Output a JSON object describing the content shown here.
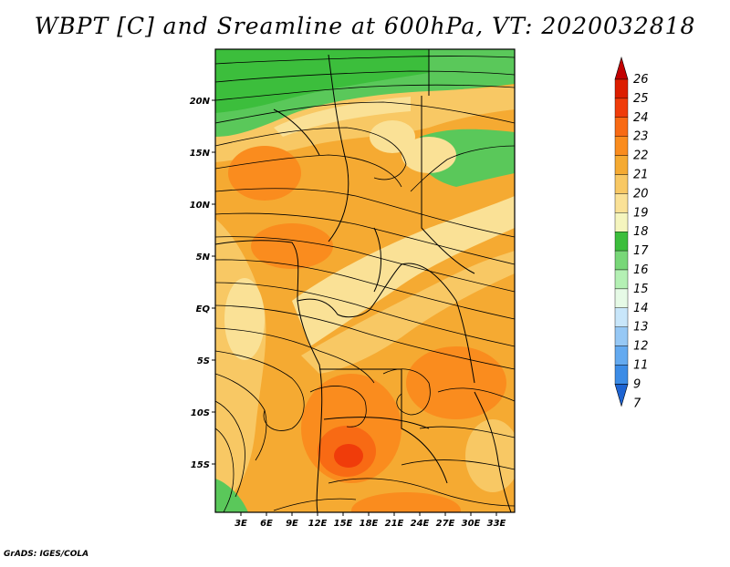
{
  "title": "WBPT [C] and Sreamline at 600hPa, VT: 2020032818",
  "footer": "GrADS: IGES/COLA",
  "lat_labels": [
    "20N",
    "15N",
    "10N",
    "5N",
    "EQ",
    "5S",
    "10S",
    "15S"
  ],
  "lon_labels": [
    "3E",
    "6E",
    "9E",
    "12E",
    "15E",
    "18E",
    "21E",
    "24E",
    "27E",
    "30E",
    "33E"
  ],
  "colorbar": {
    "levels": [
      "26",
      "25",
      "24",
      "23",
      "22",
      "21",
      "20",
      "19",
      "18",
      "17",
      "16",
      "15",
      "14",
      "13",
      "12",
      "11",
      "9",
      "7"
    ],
    "colors": [
      "#c20000",
      "#dc1e00",
      "#f03c0a",
      "#f86a14",
      "#fa8c1e",
      "#f5aa32",
      "#f8c864",
      "#fae196",
      "#f5f5be",
      "#3cbe3c",
      "#78d778",
      "#b4f0b4",
      "#e6fae6",
      "#c8e6fa",
      "#96c8f5",
      "#64aaf0",
      "#3c8ce6",
      "#1e64d2"
    ]
  }
}
